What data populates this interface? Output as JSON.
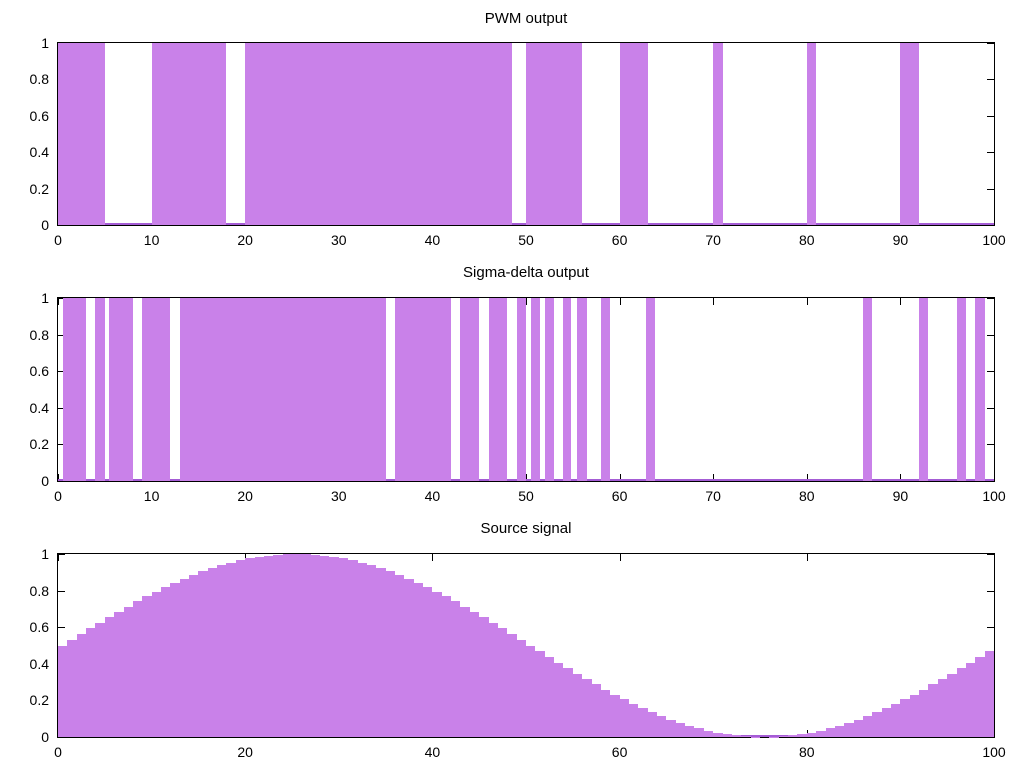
{
  "figure": {
    "background": "#ffffff",
    "border_color": "#000000",
    "text_color": "#000000",
    "bar_fill_color": "#c981e9",
    "zero_line_color": "#a45cd5"
  },
  "chart_data": [
    {
      "type": "bar",
      "title": "PWM output",
      "xlabel": "",
      "ylabel": "",
      "xlim": [
        0,
        100
      ],
      "ylim": [
        0,
        1
      ],
      "grid": false,
      "legend": "none",
      "bar_color": "#c981e9",
      "baseline_color": "#a45cd5",
      "xtick_values": [
        0,
        10,
        20,
        30,
        40,
        50,
        60,
        70,
        80,
        90,
        100
      ],
      "xtick_labels": [
        "0",
        "10",
        "20",
        "30",
        "40",
        "50",
        "60",
        "70",
        "80",
        "90",
        "100"
      ],
      "ytick_values": [
        0,
        0.2,
        0.4,
        0.6,
        0.8,
        1
      ],
      "ytick_labels": [
        "0",
        "0.2",
        "0.4",
        "0.6",
        "0.8",
        "1"
      ],
      "signal_high_value": 1,
      "signal_low_value": 0,
      "on_intervals": [
        [
          0,
          5
        ],
        [
          10,
          18
        ],
        [
          20,
          48.5
        ],
        [
          50,
          56
        ],
        [
          60,
          63
        ],
        [
          70,
          71
        ],
        [
          80,
          81
        ],
        [
          90,
          92
        ]
      ]
    },
    {
      "type": "bar",
      "title": "Sigma-delta output",
      "xlabel": "",
      "ylabel": "",
      "xlim": [
        0,
        100
      ],
      "ylim": [
        0,
        1
      ],
      "grid": false,
      "legend": "none",
      "bar_color": "#c981e9",
      "baseline_color": "#a45cd5",
      "xtick_values": [
        0,
        10,
        20,
        30,
        40,
        50,
        60,
        70,
        80,
        90,
        100
      ],
      "xtick_labels": [
        "0",
        "10",
        "20",
        "30",
        "40",
        "50",
        "60",
        "70",
        "80",
        "90",
        "100"
      ],
      "ytick_values": [
        0,
        0.2,
        0.4,
        0.6,
        0.8,
        1
      ],
      "ytick_labels": [
        "0",
        "0.2",
        "0.4",
        "0.6",
        "0.8",
        "1"
      ],
      "signal_high_value": 1,
      "signal_low_value": 0,
      "on_intervals": [
        [
          0.5,
          3
        ],
        [
          4,
          5
        ],
        [
          5.5,
          8
        ],
        [
          9,
          12
        ],
        [
          13,
          35
        ],
        [
          36,
          42
        ],
        [
          43,
          45
        ],
        [
          46,
          48
        ],
        [
          49,
          50
        ],
        [
          50.5,
          51.5
        ],
        [
          52,
          53
        ],
        [
          54,
          54.8
        ],
        [
          55.5,
          56.5
        ],
        [
          58,
          59
        ],
        [
          62.8,
          63.8
        ],
        [
          86,
          87
        ],
        [
          92,
          93
        ],
        [
          96,
          97
        ],
        [
          98,
          99
        ]
      ]
    },
    {
      "type": "bar",
      "title": "Source signal",
      "xlabel": "",
      "ylabel": "",
      "xlim": [
        0,
        100
      ],
      "ylim": [
        0,
        1
      ],
      "grid": false,
      "legend": "none",
      "bar_color": "#c981e9",
      "baseline_color": "#a45cd5",
      "xtick_values": [
        0,
        20,
        40,
        60,
        80,
        100
      ],
      "xtick_labels": [
        "0",
        "20",
        "40",
        "60",
        "80",
        "100"
      ],
      "ytick_values": [
        0,
        0.2,
        0.4,
        0.6,
        0.8,
        1
      ],
      "ytick_labels": [
        "0",
        "0.2",
        "0.4",
        "0.6",
        "0.8",
        "1"
      ],
      "x_start": 0,
      "x_step": 1,
      "values": [
        0.5,
        0.531,
        0.563,
        0.594,
        0.624,
        0.655,
        0.684,
        0.713,
        0.741,
        0.768,
        0.794,
        0.819,
        0.842,
        0.865,
        0.885,
        0.905,
        0.922,
        0.938,
        0.952,
        0.965,
        0.976,
        0.984,
        0.991,
        0.996,
        0.999,
        1.0,
        0.999,
        0.996,
        0.991,
        0.984,
        0.976,
        0.965,
        0.952,
        0.938,
        0.922,
        0.905,
        0.885,
        0.865,
        0.842,
        0.819,
        0.794,
        0.768,
        0.741,
        0.713,
        0.684,
        0.655,
        0.624,
        0.594,
        0.563,
        0.531,
        0.5,
        0.469,
        0.437,
        0.406,
        0.376,
        0.345,
        0.316,
        0.287,
        0.259,
        0.232,
        0.206,
        0.181,
        0.158,
        0.135,
        0.115,
        0.095,
        0.078,
        0.062,
        0.048,
        0.035,
        0.024,
        0.016,
        0.009,
        0.004,
        0.001,
        0.0,
        0.001,
        0.004,
        0.009,
        0.016,
        0.024,
        0.035,
        0.048,
        0.062,
        0.078,
        0.095,
        0.115,
        0.135,
        0.158,
        0.181,
        0.206,
        0.232,
        0.259,
        0.287,
        0.316,
        0.345,
        0.376,
        0.406,
        0.437,
        0.469
      ]
    }
  ]
}
